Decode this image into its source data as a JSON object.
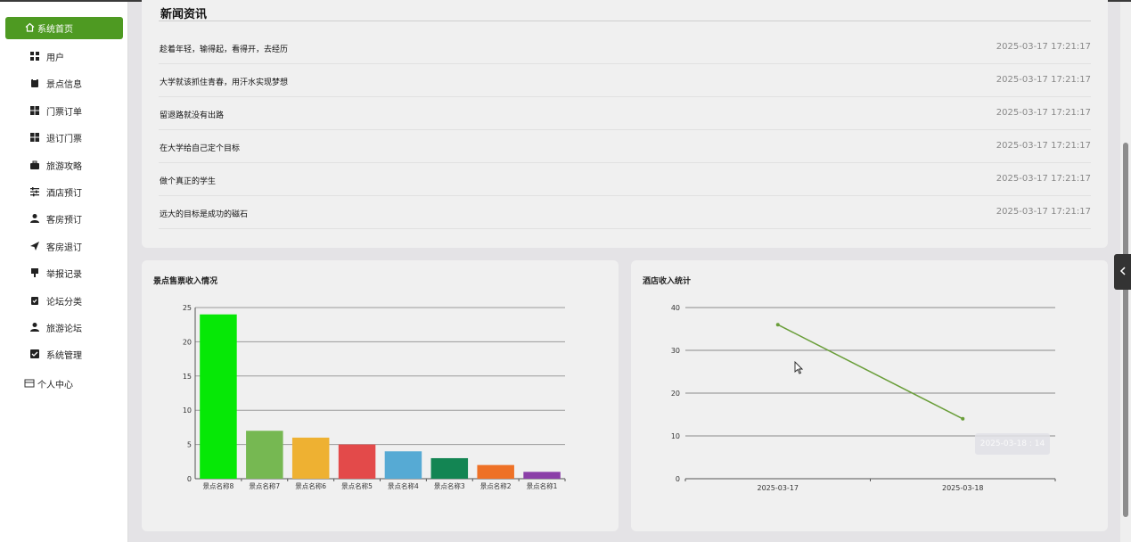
{
  "sidebar": {
    "home_label": "系统首页",
    "items": [
      {
        "label": "用户",
        "icon": "grid-icon"
      },
      {
        "label": "景点信息",
        "icon": "clipboard-icon"
      },
      {
        "label": "门票订单",
        "icon": "apps-icon"
      },
      {
        "label": "退订门票",
        "icon": "apps-icon"
      },
      {
        "label": "旅游攻略",
        "icon": "briefcase-icon"
      },
      {
        "label": "酒店预订",
        "icon": "sliders-icon"
      },
      {
        "label": "客房预订",
        "icon": "user-icon"
      },
      {
        "label": "客房退订",
        "icon": "send-icon"
      },
      {
        "label": "举报记录",
        "icon": "pin-icon"
      },
      {
        "label": "论坛分类",
        "icon": "clipboard-check-icon"
      },
      {
        "label": "旅游论坛",
        "icon": "user-icon"
      },
      {
        "label": "系统管理",
        "icon": "checkbox-icon"
      }
    ],
    "profile_label": "个人中心"
  },
  "news": {
    "title": "新闻资讯",
    "items": [
      {
        "title": "趁着年轻，输得起，看得开，去经历",
        "date": "2025-03-17 17:21:17"
      },
      {
        "title": "大学就该抓住青春，用汗水实现梦想",
        "date": "2025-03-17 17:21:17"
      },
      {
        "title": "留退路就没有出路",
        "date": "2025-03-17 17:21:17"
      },
      {
        "title": "在大学给自己定个目标",
        "date": "2025-03-17 17:21:17"
      },
      {
        "title": "做个真正的学生",
        "date": "2025-03-17 17:21:17"
      },
      {
        "title": "远大的目标是成功的磁石",
        "date": "2025-03-17 17:21:17"
      }
    ]
  },
  "colors": {
    "accent": "#4e9a22",
    "line": "#6a9e3a"
  },
  "chart_data": [
    {
      "type": "bar",
      "title": "景点售票收入情况",
      "categories": [
        "景点名称8",
        "景点名称7",
        "景点名称6",
        "景点名称5",
        "景点名称4",
        "景点名称3",
        "景点名称2",
        "景点名称1"
      ],
      "values": [
        24,
        7,
        6,
        5,
        4,
        3,
        2,
        1
      ],
      "colors": [
        "#06e806",
        "#76b852",
        "#eeb132",
        "#e34a4a",
        "#56aad4",
        "#138553",
        "#ee7126",
        "#8b3fa8"
      ],
      "ylim": [
        0,
        25
      ],
      "yticks": [
        0,
        5,
        10,
        15,
        20,
        25
      ],
      "grid": true
    },
    {
      "type": "line",
      "title": "酒店收入统计",
      "x": [
        "2025-03-17",
        "2025-03-18"
      ],
      "series": [
        {
          "values": [
            36,
            14
          ]
        }
      ],
      "ylim": [
        0,
        40
      ],
      "yticks": [
        0,
        10,
        20,
        30,
        40
      ],
      "grid": true,
      "tooltip": "2025-03-18 : 14"
    }
  ]
}
